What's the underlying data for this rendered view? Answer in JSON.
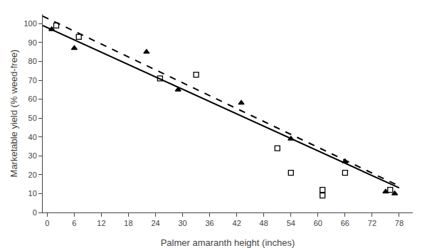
{
  "chart_data": {
    "type": "scatter",
    "xlabel": "Palmer amaranth height (inches)",
    "ylabel": "Marketable yield (% weed-free)",
    "xlim": [
      -1,
      81
    ],
    "ylim": [
      0,
      105
    ],
    "xticks": [
      0,
      6,
      12,
      18,
      24,
      30,
      36,
      42,
      48,
      54,
      60,
      66,
      72,
      78
    ],
    "yticks": [
      0,
      10,
      20,
      30,
      40,
      50,
      60,
      70,
      80,
      90,
      100
    ],
    "grid": false,
    "series": [
      {
        "type": "line",
        "line_style": "solid",
        "color": "#000000",
        "x": [
          -1,
          78
        ],
        "values": [
          99,
          13
        ]
      },
      {
        "type": "line",
        "line_style": "dashed",
        "color": "#000000",
        "x": [
          -1,
          78
        ],
        "values": [
          104,
          14
        ]
      },
      {
        "type": "scatter",
        "marker": "square-open",
        "color": "#000000",
        "x": [
          2,
          7,
          25,
          33,
          51,
          54,
          61,
          61,
          66,
          76
        ],
        "values": [
          99,
          93,
          71,
          73,
          34,
          21,
          12,
          9,
          21,
          12
        ]
      },
      {
        "type": "scatter",
        "marker": "triangle-up",
        "color": "#000000",
        "x": [
          1,
          6,
          22,
          29,
          43,
          54,
          66,
          75,
          77
        ],
        "values": [
          97,
          87,
          85,
          65,
          58,
          39,
          27,
          11,
          10
        ]
      }
    ]
  }
}
